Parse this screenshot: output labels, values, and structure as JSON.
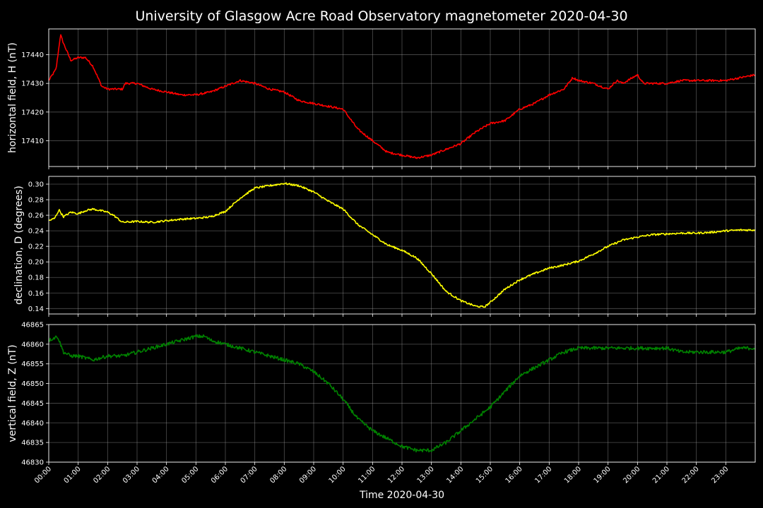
{
  "chart_data": {
    "title": "University of Glasgow Acre Road Observatory magnetometer 2020-04-30",
    "xlabel": "Time 2020-04-30",
    "x_ticks": [
      "00:00",
      "01:00",
      "02:00",
      "03:00",
      "04:00",
      "05:00",
      "06:00",
      "07:00",
      "08:00",
      "09:00",
      "10:00",
      "11:00",
      "12:00",
      "13:00",
      "14:00",
      "15:00",
      "16:00",
      "17:00",
      "18:00",
      "19:00",
      "20:00",
      "21:00",
      "22:00",
      "23:00"
    ],
    "xlim_hours": [
      0,
      24
    ],
    "grid": true,
    "panels": [
      {
        "type": "line",
        "ylabel": "horizontal field, H (nT)",
        "color": "#ff0000",
        "ylim": [
          17401,
          17449
        ],
        "y_ticks": [
          17410,
          17420,
          17430,
          17440
        ],
        "noise": 0.35,
        "series": {
          "x_hours": [
            0,
            0.25,
            0.4,
            0.5,
            0.75,
            1.0,
            1.25,
            1.5,
            1.8,
            2.0,
            2.5,
            2.6,
            3.0,
            3.5,
            4.0,
            4.5,
            5.0,
            5.5,
            6.0,
            6.5,
            7.0,
            7.5,
            8.0,
            8.5,
            9.0,
            9.5,
            10.0,
            10.5,
            11.0,
            11.5,
            12.0,
            12.5,
            13.0,
            13.5,
            14.0,
            14.5,
            15.0,
            15.5,
            16.0,
            16.5,
            17.0,
            17.5,
            17.8,
            18.0,
            18.5,
            19.0,
            19.3,
            19.5,
            20.0,
            20.2,
            20.5,
            21.0,
            21.5,
            22.0,
            22.5,
            23.0,
            23.5,
            24.0
          ],
          "values": [
            17431,
            17435,
            17447,
            17444,
            17438,
            17439,
            17439,
            17436,
            17429,
            17428,
            17428,
            17430,
            17430,
            17428,
            17427,
            17426,
            17426,
            17427,
            17429,
            17431,
            17430,
            17428,
            17427,
            17424,
            17423,
            17422,
            17421,
            17414,
            17410,
            17406,
            17405,
            17404,
            17405,
            17407,
            17409,
            17413,
            17416,
            17417,
            17421,
            17423,
            17426,
            17428,
            17432,
            17431,
            17430,
            17428,
            17431,
            17430,
            17433,
            17430,
            17430,
            17430,
            17431,
            17431,
            17431,
            17431,
            17432,
            17433
          ]
        }
      },
      {
        "type": "line",
        "ylabel": "declination, D (degrees)",
        "color": "#ffff00",
        "ylim": [
          0.133,
          0.31
        ],
        "y_ticks": [
          0.14,
          0.16,
          0.18,
          0.2,
          0.22,
          0.24,
          0.26,
          0.28,
          0.3
        ],
        "noise": 0.0012,
        "series": {
          "x_hours": [
            0,
            0.2,
            0.35,
            0.5,
            0.75,
            1.0,
            1.25,
            1.5,
            2.0,
            2.2,
            2.5,
            3.0,
            3.5,
            4.0,
            4.5,
            5.0,
            5.5,
            6.0,
            6.5,
            7.0,
            7.5,
            8.0,
            8.5,
            9.0,
            9.5,
            10.0,
            10.5,
            11.0,
            11.5,
            12.0,
            12.5,
            13.0,
            13.5,
            14.0,
            14.5,
            14.8,
            15.0,
            15.5,
            16.0,
            16.5,
            17.0,
            17.5,
            18.0,
            18.5,
            19.0,
            19.5,
            20.0,
            20.5,
            21.0,
            21.5,
            22.0,
            22.5,
            23.0,
            23.5,
            24.0
          ],
          "values": [
            0.253,
            0.256,
            0.267,
            0.258,
            0.264,
            0.262,
            0.266,
            0.268,
            0.264,
            0.26,
            0.251,
            0.252,
            0.251,
            0.253,
            0.255,
            0.256,
            0.258,
            0.265,
            0.282,
            0.295,
            0.298,
            0.301,
            0.298,
            0.29,
            0.278,
            0.268,
            0.248,
            0.235,
            0.222,
            0.215,
            0.205,
            0.185,
            0.162,
            0.15,
            0.143,
            0.142,
            0.148,
            0.165,
            0.177,
            0.185,
            0.192,
            0.196,
            0.201,
            0.21,
            0.22,
            0.228,
            0.232,
            0.235,
            0.236,
            0.237,
            0.237,
            0.238,
            0.24,
            0.241,
            0.241
          ]
        }
      },
      {
        "type": "line",
        "ylabel": "vertical field, Z (nT)",
        "color": "#008000",
        "ylim": [
          46830,
          46865
        ],
        "y_ticks": [
          46830,
          46835,
          46840,
          46845,
          46850,
          46855,
          46860,
          46865
        ],
        "noise": 0.45,
        "series": {
          "x_hours": [
            0,
            0.3,
            0.5,
            0.75,
            1.0,
            1.5,
            2.0,
            2.5,
            3.0,
            3.5,
            4.0,
            4.5,
            5.0,
            5.3,
            5.5,
            6.0,
            6.5,
            7.0,
            7.5,
            8.0,
            8.5,
            9.0,
            9.5,
            10.0,
            10.5,
            11.0,
            11.5,
            12.0,
            12.5,
            13.0,
            13.5,
            14.0,
            14.5,
            15.0,
            15.5,
            16.0,
            16.5,
            17.0,
            17.5,
            18.0,
            18.5,
            19.0,
            19.5,
            20.0,
            20.5,
            21.0,
            21.5,
            22.0,
            22.5,
            23.0,
            23.5,
            24.0
          ],
          "values": [
            46861,
            46862,
            46858,
            46857,
            46857,
            46856,
            46857,
            46857,
            46858,
            46859,
            46860,
            46861,
            46862,
            46862,
            46861,
            46860,
            46859,
            46858,
            46857,
            46856,
            46855,
            46853,
            46850,
            46846,
            46841,
            46838,
            46836,
            46834,
            46833,
            46833,
            46835,
            46838,
            46841,
            46844,
            46848,
            46852,
            46854,
            46856,
            46858,
            46859,
            46859,
            46859,
            46859,
            46859,
            46859,
            46859,
            46858,
            46858,
            46858,
            46858,
            46859,
            46859
          ]
        }
      }
    ]
  }
}
